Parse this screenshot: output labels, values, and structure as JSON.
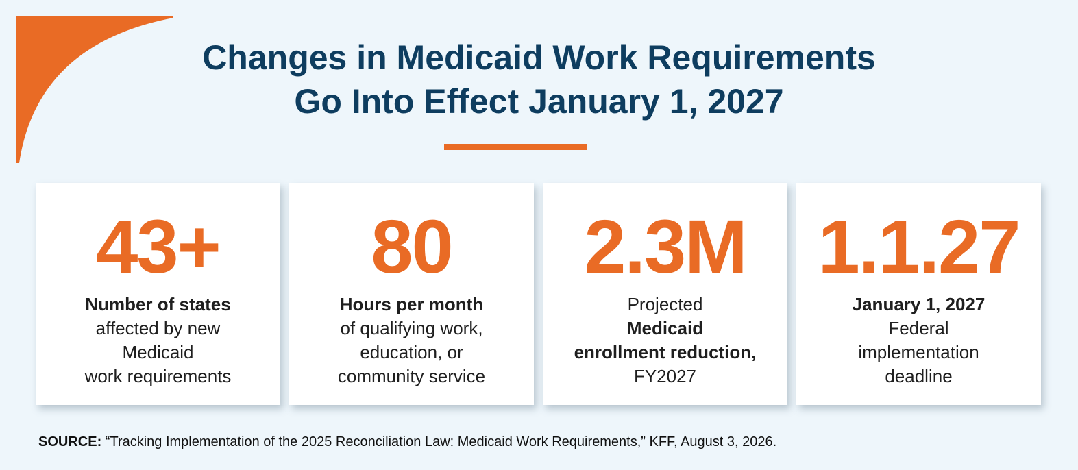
{
  "title": {
    "line1": "Changes in Medicaid Work Requirements",
    "line2": "Go Into Effect January 1, 2027"
  },
  "colors": {
    "accent": "#e96b25",
    "title": "#0e3d5f",
    "background": "#eef6fb",
    "card": "#ffffff",
    "text": "#1f1f1f"
  },
  "cards": [
    {
      "value": "43+",
      "lines": [
        {
          "text": "Number of states",
          "bold": true
        },
        {
          "text": "affected by new",
          "bold": false
        },
        {
          "text": "Medicaid",
          "bold": false
        },
        {
          "text": "work requirements",
          "bold": false
        }
      ]
    },
    {
      "value": "80",
      "lines": [
        {
          "text": "Hours per month",
          "bold": true
        },
        {
          "text": "of qualifying work,",
          "bold": false
        },
        {
          "text": "education, or",
          "bold": false
        },
        {
          "text": "community service",
          "bold": false
        }
      ]
    },
    {
      "value": "2.3M",
      "lines": [
        {
          "text": "Projected",
          "bold": false
        },
        {
          "text": "Medicaid",
          "bold": true
        },
        {
          "text": "enrollment reduction,",
          "bold": true
        },
        {
          "text": "FY2027",
          "bold": false
        }
      ]
    },
    {
      "value": "1.1.27",
      "lines": [
        {
          "text": "January 1, 2027",
          "bold": true
        },
        {
          "text": "Federal",
          "bold": false
        },
        {
          "text": "implementation",
          "bold": false
        },
        {
          "text": "deadline",
          "bold": false
        }
      ]
    }
  ],
  "source": {
    "label": "SOURCE:",
    "text": "“Tracking Implementation of the 2025 Reconciliation Law: Medicaid Work Requirements,” KFF, August 3, 2026."
  }
}
